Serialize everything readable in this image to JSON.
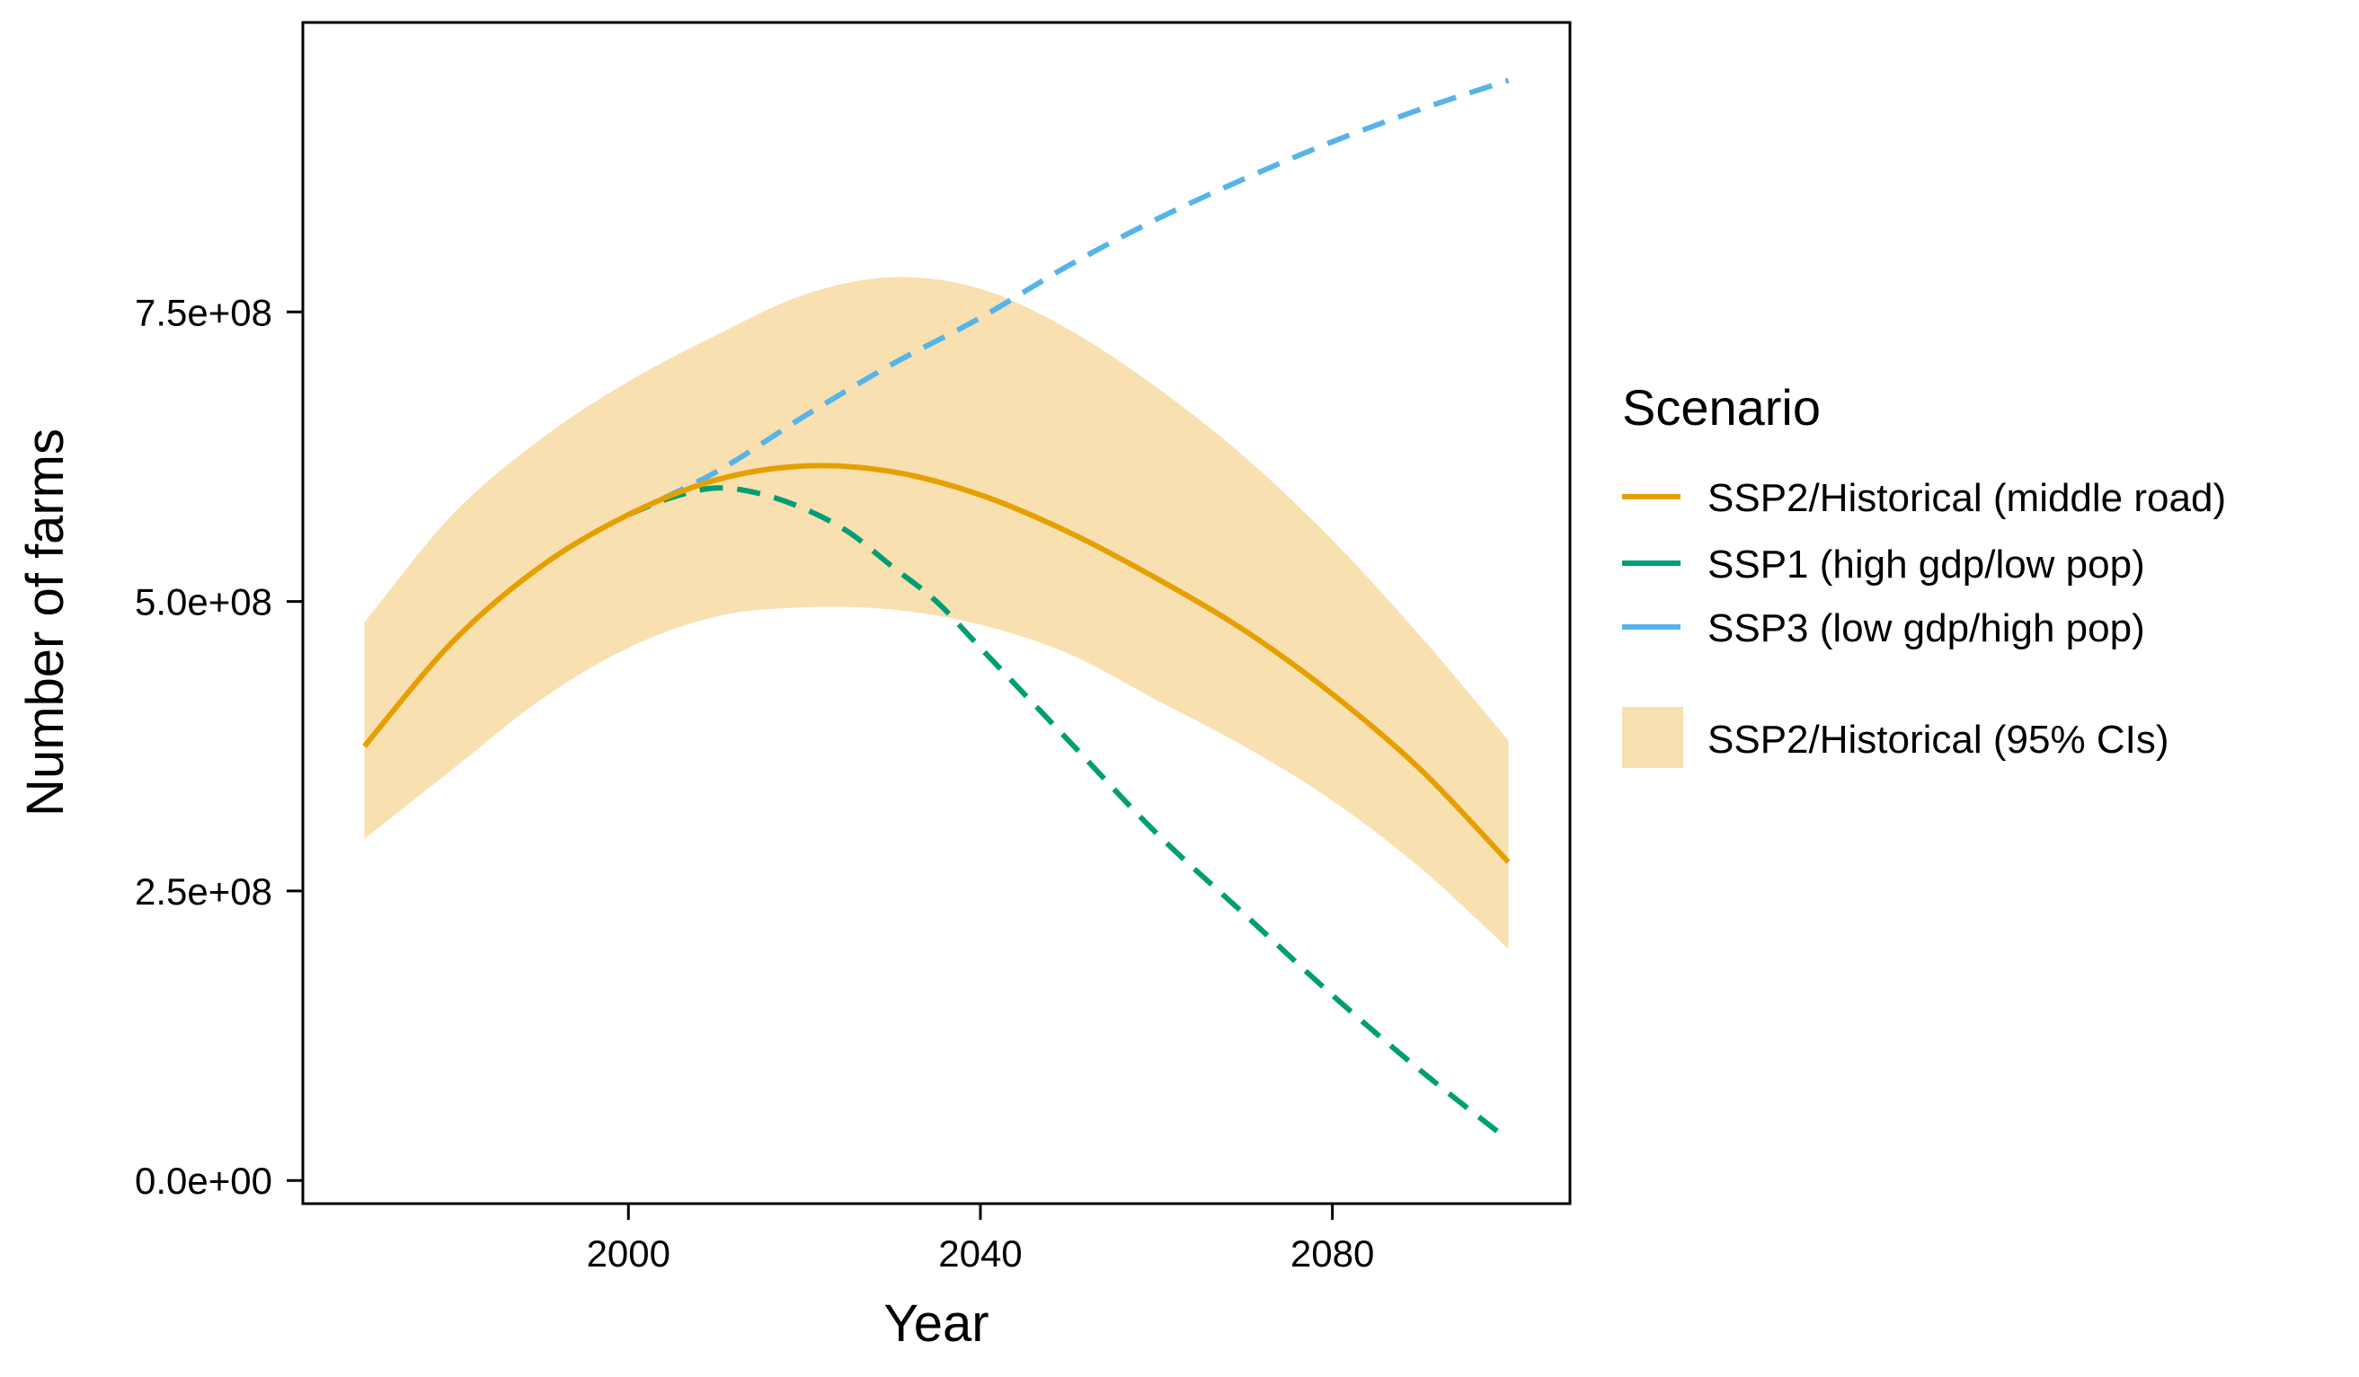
{
  "chart_data": {
    "type": "line",
    "xlabel": "Year",
    "ylabel": "Number of farms",
    "xlim": [
      1963,
      2107
    ],
    "ylim": [
      -20000000,
      1000000000
    ],
    "x_ticks": [
      2000,
      2040,
      2080
    ],
    "x_tick_labels": [
      "2000",
      "2040",
      "2080"
    ],
    "y_ticks": [
      0,
      250000000,
      500000000,
      750000000
    ],
    "y_tick_labels": [
      "0.0e+00",
      "2.5e+08",
      "5.0e+08",
      "7.5e+08"
    ],
    "grid": false,
    "legend": {
      "title": "Scenario",
      "position": "right",
      "entries": [
        "SSP2/Historical (middle road)",
        "SSP1 (high gdp/low pop)",
        "SSP3 (low gdp/high pop)",
        "SSP2/Historical (95% CIs)"
      ]
    },
    "colors": {
      "ssp2": "#E69F00",
      "ssp1": "#009E73",
      "ssp3": "#56B4E9",
      "ci_band": "#F8E0B0"
    },
    "x": [
      1970,
      1980,
      1990,
      2000,
      2010,
      2020,
      2030,
      2040,
      2050,
      2060,
      2070,
      2080,
      2090,
      2100
    ],
    "series": [
      {
        "name": "SSP2/Historical (middle road)",
        "style": "solid",
        "values": [
          375000000,
          465000000,
          530000000,
          575000000,
          605000000,
          617000000,
          612000000,
          592000000,
          560000000,
          520000000,
          475000000,
          420000000,
          355000000,
          275000000
        ]
      },
      {
        "name": "SSP1 (high gdp/low pop)",
        "style": "dashed",
        "x": [
          2000,
          2005,
          2010,
          2015,
          2020,
          2025,
          2030,
          2035,
          2040,
          2050,
          2060,
          2070,
          2080,
          2090,
          2100
        ],
        "values": [
          575000000,
          590000000,
          598000000,
          593000000,
          580000000,
          560000000,
          530000000,
          500000000,
          460000000,
          380000000,
          300000000,
          230000000,
          160000000,
          95000000,
          35000000
        ]
      },
      {
        "name": "SSP3 (low gdp/high pop)",
        "style": "dashed",
        "x": [
          2000,
          2010,
          2020,
          2030,
          2040,
          2050,
          2060,
          2070,
          2080,
          2090,
          2100
        ],
        "values": [
          575000000,
          612000000,
          660000000,
          705000000,
          745000000,
          790000000,
          830000000,
          865000000,
          897000000,
          925000000,
          950000000
        ]
      }
    ],
    "band": {
      "name": "SSP2/Historical (95% CIs)",
      "upper": [
        482000000,
        575000000,
        640000000,
        690000000,
        730000000,
        765000000,
        780000000,
        770000000,
        735000000,
        685000000,
        625000000,
        553000000,
        470000000,
        380000000
      ],
      "lower": [
        295000000,
        355000000,
        415000000,
        460000000,
        487000000,
        495000000,
        493000000,
        480000000,
        455000000,
        415000000,
        375000000,
        328000000,
        270000000,
        200000000
      ]
    }
  }
}
